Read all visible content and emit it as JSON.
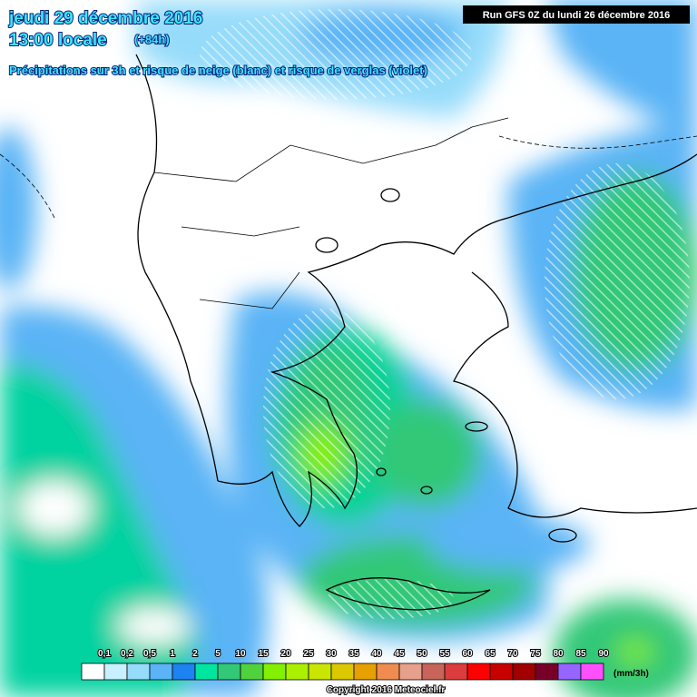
{
  "header": {
    "date": "jeudi 29 décembre 2016",
    "time": "13:00 locale",
    "lead": "(+84h)",
    "description": "Précipitations sur 3h et risque de neige (blanc) et risque de verglas (violet)",
    "run": "Run GFS 0Z du lundi 26 décembre 2016"
  },
  "legend": {
    "labels": [
      "0,1",
      "0,2",
      "0,5",
      "1",
      "2",
      "5",
      "10",
      "15",
      "20",
      "25",
      "30",
      "35",
      "40",
      "45",
      "50",
      "55",
      "60",
      "65",
      "70",
      "75",
      "80",
      "85",
      "90"
    ],
    "colors": [
      "#ffffff",
      "#c8f0ff",
      "#96dcfa",
      "#5ab4f5",
      "#1e82f0",
      "#00e6a0",
      "#32c878",
      "#50d23c",
      "#82f000",
      "#aaf000",
      "#c8e600",
      "#dcc800",
      "#e6a000",
      "#f08c50",
      "#e6a08c",
      "#c8645a",
      "#dc3c3c",
      "#ff0000",
      "#c80000",
      "#a00000",
      "#780028",
      "#9664ff",
      "#ff50ff"
    ],
    "unit": "(mm/3h)"
  },
  "footer": {
    "copyright": "Copyright 2016 Meteociel.fr"
  }
}
